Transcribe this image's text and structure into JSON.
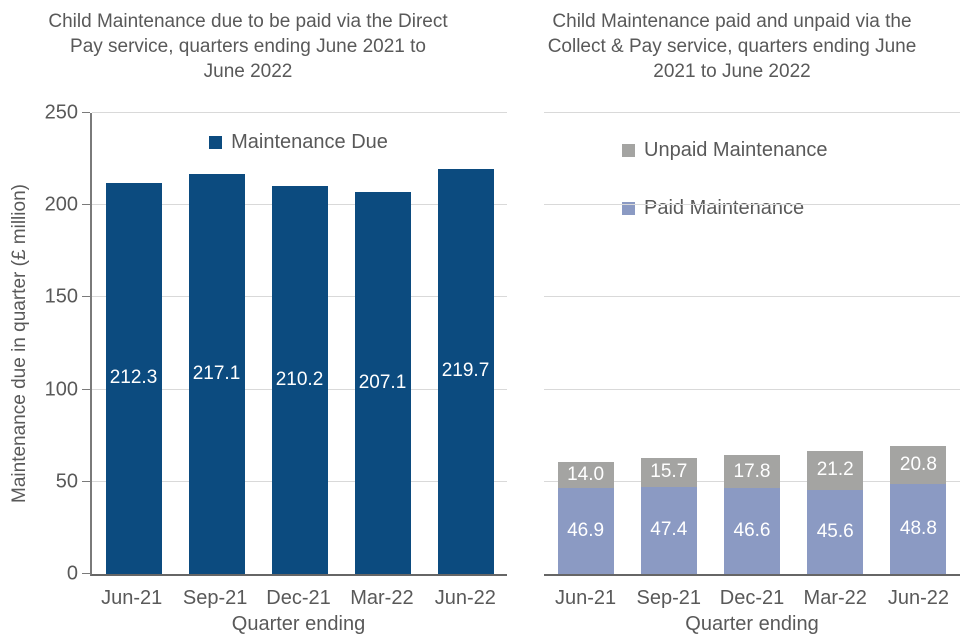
{
  "figure": {
    "background": "#FFFFFF",
    "text_color": "#595959",
    "gridline_color": "#D9D9D9",
    "axis_line_color": "#6E6E6E",
    "bar_label_color": "#FFFFFF"
  },
  "chart_data": [
    {
      "type": "bar",
      "stacked": false,
      "title": "Child Maintenance due to be paid via the Direct\nPay service, quarters ending June 2021 to\nJune 2022",
      "categories": [
        "Jun-21",
        "Sep-21",
        "Dec-21",
        "Mar-22",
        "Jun-22"
      ],
      "series": [
        {
          "name": "Maintenance Due",
          "color": "#0C4B7F",
          "values": [
            212.3,
            217.1,
            210.2,
            207.1,
            219.7
          ]
        }
      ],
      "xlabel": "Quarter ending",
      "ylabel": "Maintenance due in quarter (£ million)",
      "ylim": [
        0,
        250
      ],
      "yticks": [
        0,
        50,
        100,
        150,
        200,
        250
      ],
      "grid": true,
      "legend_position": "top-center",
      "value_labels": "centered-white-inside-bars"
    },
    {
      "type": "bar",
      "stacked": true,
      "title": "Child Maintenance paid and unpaid via the\nCollect & Pay service, quarters ending June\n2021 to June 2022",
      "categories": [
        "Jun-21",
        "Sep-21",
        "Dec-21",
        "Mar-22",
        "Jun-22"
      ],
      "series": [
        {
          "name": "Paid Maintenance",
          "color": "#8B9AC3",
          "values": [
            46.9,
            47.4,
            46.6,
            45.6,
            48.8
          ]
        },
        {
          "name": "Unpaid Maintenance",
          "color": "#A4A4A2",
          "values": [
            14.0,
            15.7,
            17.8,
            21.2,
            20.8
          ]
        }
      ],
      "xlabel": "Quarter ending",
      "ylabel": "",
      "ylim": [
        0,
        250
      ],
      "yticks": [
        0,
        50,
        100,
        150,
        200,
        250
      ],
      "grid": true,
      "legend_position": "upper-area-stacked-entries",
      "value_labels": "centered-white-inside-segments"
    }
  ]
}
